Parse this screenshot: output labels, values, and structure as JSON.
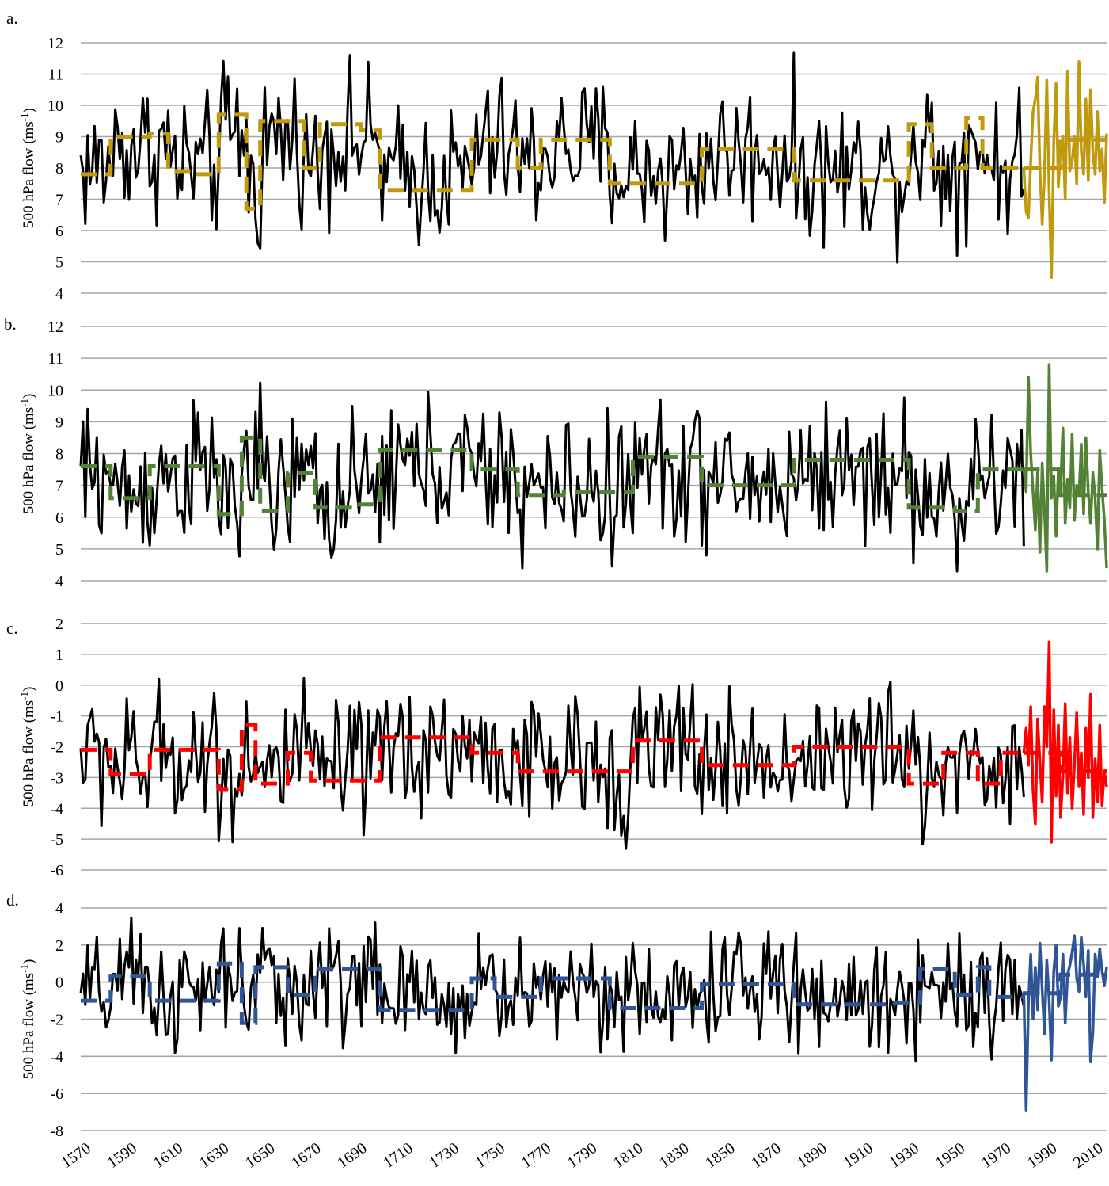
{
  "chart_data": [
    {
      "type": "line",
      "panel_label": "a.",
      "ylabel": "500 hPa flow (ms-1)",
      "ylabel_parts": [
        "500 hPa flow (ms",
        "-1",
        ")"
      ],
      "ylim": [
        4,
        12
      ],
      "yticks": [
        4,
        5,
        6,
        7,
        8,
        9,
        10,
        11,
        12
      ],
      "grid": true,
      "color": "#c0990c",
      "series": [
        {
          "style": "solid-black-annual",
          "base": 8.3,
          "amplitude": 1.1,
          "x_range": [
            1570,
            1980
          ]
        },
        {
          "style": "dashed-regime-mean",
          "segments": [
            [
              1570,
              1583,
              7.8
            ],
            [
              1583,
              1600,
              9.0
            ],
            [
              1600,
              1608,
              9.1
            ],
            [
              1608,
              1620,
              7.9
            ],
            [
              1620,
              1630,
              7.8
            ],
            [
              1630,
              1642,
              9.7
            ],
            [
              1642,
              1648,
              6.7
            ],
            [
              1648,
              1658,
              9.5
            ],
            [
              1658,
              1667,
              9.5
            ],
            [
              1667,
              1674,
              8.0
            ],
            [
              1674,
              1684,
              9.4
            ],
            [
              1684,
              1692,
              9.4
            ],
            [
              1692,
              1700,
              9.2
            ],
            [
              1700,
              1722,
              7.3
            ],
            [
              1722,
              1740,
              7.3
            ],
            [
              1740,
              1760,
              8.9
            ],
            [
              1760,
              1770,
              8.0
            ],
            [
              1770,
              1800,
              8.9
            ],
            [
              1800,
              1830,
              7.5
            ],
            [
              1830,
              1840,
              7.5
            ],
            [
              1840,
              1870,
              8.6
            ],
            [
              1870,
              1880,
              8.6
            ],
            [
              1880,
              1900,
              7.6
            ],
            [
              1900,
              1930,
              7.6
            ],
            [
              1930,
              1940,
              9.4
            ],
            [
              1940,
              1955,
              8.0
            ],
            [
              1955,
              1962,
              9.6
            ],
            [
              1962,
              1980,
              8.0
            ]
          ]
        },
        {
          "style": "solid-colored-recent",
          "x": [
            1980,
            1981,
            1982,
            1983,
            1984,
            1985,
            1986,
            1987,
            1988,
            1989,
            1990,
            1991,
            1992,
            1993,
            1994,
            1995,
            1996,
            1997,
            1998,
            1999,
            2000,
            2001,
            2002,
            2003,
            2004,
            2005,
            2006,
            2007,
            2008,
            2009,
            2010,
            2011,
            2012,
            2013,
            2014,
            2015,
            2016
          ],
          "values": [
            8.0,
            6.6,
            6.4,
            8.2,
            9.8,
            10.2,
            10.9,
            8.0,
            6.2,
            7.8,
            10.8,
            7.2,
            4.5,
            8.8,
            10.7,
            7.4,
            8.6,
            9.0,
            7.0,
            11.1,
            7.9,
            8.2,
            9.0,
            7.5,
            11.4,
            8.5,
            7.8,
            10.2,
            7.6,
            10.5,
            8.5,
            7.8,
            9.8,
            7.9,
            8.6,
            6.9,
            9.1
          ]
        },
        {
          "style": "dashed-regime-recent",
          "segments": [
            [
              1980,
              1996,
              8.0
            ],
            [
              1996,
              2016,
              8.9
            ]
          ]
        }
      ]
    },
    {
      "type": "line",
      "panel_label": "b.",
      "ylabel": "500 hPa flow (ms-1)",
      "ylabel_parts": [
        "500 hPa flow (ms",
        "-1",
        ")"
      ],
      "ylim": [
        4,
        12
      ],
      "yticks": [
        4,
        5,
        6,
        7,
        8,
        9,
        10,
        11,
        12
      ],
      "grid": true,
      "color": "#538135",
      "series": [
        {
          "style": "solid-black-annual",
          "base": 7.0,
          "amplitude": 1.1,
          "x_range": [
            1570,
            1980
          ]
        },
        {
          "style": "dashed-regime-mean",
          "segments": [
            [
              1570,
              1583,
              7.6
            ],
            [
              1583,
              1600,
              6.6
            ],
            [
              1600,
              1620,
              7.6
            ],
            [
              1620,
              1630,
              7.6
            ],
            [
              1630,
              1640,
              6.1
            ],
            [
              1640,
              1648,
              8.5
            ],
            [
              1648,
              1660,
              6.2
            ],
            [
              1660,
              1672,
              7.4
            ],
            [
              1672,
              1690,
              6.3
            ],
            [
              1690,
              1700,
              6.4
            ],
            [
              1700,
              1720,
              8.1
            ],
            [
              1720,
              1740,
              8.1
            ],
            [
              1740,
              1760,
              7.5
            ],
            [
              1760,
              1780,
              6.7
            ],
            [
              1780,
              1810,
              6.8
            ],
            [
              1810,
              1840,
              7.9
            ],
            [
              1840,
              1860,
              7.0
            ],
            [
              1860,
              1880,
              7.0
            ],
            [
              1880,
              1900,
              7.8
            ],
            [
              1900,
              1930,
              7.8
            ],
            [
              1930,
              1950,
              6.3
            ],
            [
              1950,
              1960,
              6.2
            ],
            [
              1960,
              1980,
              7.5
            ]
          ]
        },
        {
          "style": "solid-colored-recent",
          "x": [
            1980,
            1981,
            1982,
            1983,
            1984,
            1985,
            1986,
            1987,
            1988,
            1989,
            1990,
            1991,
            1992,
            1993,
            1994,
            1995,
            1996,
            1997,
            1998,
            1999,
            2000,
            2001,
            2002,
            2003,
            2004,
            2005,
            2006,
            2007,
            2008,
            2009,
            2010,
            2011,
            2012,
            2013,
            2014,
            2015,
            2016
          ],
          "values": [
            7.5,
            6.8,
            10.4,
            8.0,
            6.8,
            5.6,
            7.4,
            4.9,
            7.7,
            6.2,
            4.3,
            10.8,
            6.6,
            7.3,
            5.4,
            7.5,
            7.0,
            8.8,
            5.8,
            7.2,
            6.3,
            8.6,
            5.9,
            7.0,
            6.7,
            8.3,
            6.1,
            8.5,
            6.8,
            5.8,
            7.4,
            6.6,
            5.0,
            8.1,
            6.9,
            5.9,
            4.4
          ]
        },
        {
          "style": "dashed-regime-recent",
          "segments": [
            [
              1980,
              1996,
              7.5
            ],
            [
              1996,
              2016,
              6.7
            ]
          ]
        }
      ]
    },
    {
      "type": "line",
      "panel_label": "c.",
      "ylabel": "500 hPa flow (ms-1)",
      "ylabel_parts": [
        "500 hPa flow (ms",
        "-1",
        ")"
      ],
      "ylim": [
        -6,
        2
      ],
      "yticks": [
        -6,
        -5,
        -4,
        -3,
        -2,
        -1,
        0,
        1,
        2
      ],
      "grid": true,
      "color": "#ff0000",
      "series": [
        {
          "style": "solid-black-annual",
          "base": -2.4,
          "amplitude": 1.1,
          "x_range": [
            1570,
            1980
          ]
        },
        {
          "style": "dashed-regime-mean",
          "segments": [
            [
              1570,
              1583,
              -2.1
            ],
            [
              1583,
              1600,
              -2.9
            ],
            [
              1600,
              1620,
              -2.1
            ],
            [
              1620,
              1630,
              -2.1
            ],
            [
              1630,
              1640,
              -3.4
            ],
            [
              1640,
              1646,
              -1.3
            ],
            [
              1646,
              1660,
              -3.2
            ],
            [
              1660,
              1670,
              -2.2
            ],
            [
              1670,
              1690,
              -3.1
            ],
            [
              1690,
              1700,
              -3.1
            ],
            [
              1700,
              1720,
              -1.7
            ],
            [
              1720,
              1740,
              -1.7
            ],
            [
              1740,
              1760,
              -2.2
            ],
            [
              1760,
              1780,
              -2.8
            ],
            [
              1780,
              1810,
              -2.8
            ],
            [
              1810,
              1840,
              -1.8
            ],
            [
              1840,
              1870,
              -2.6
            ],
            [
              1870,
              1880,
              -2.6
            ],
            [
              1880,
              1900,
              -2.0
            ],
            [
              1900,
              1930,
              -2.0
            ],
            [
              1930,
              1945,
              -3.2
            ],
            [
              1945,
              1960,
              -2.2
            ],
            [
              1960,
              1970,
              -3.2
            ],
            [
              1970,
              1980,
              -2.2
            ]
          ]
        },
        {
          "style": "solid-colored-recent",
          "x": [
            1980,
            1981,
            1982,
            1983,
            1984,
            1985,
            1986,
            1987,
            1988,
            1989,
            1990,
            1991,
            1992,
            1993,
            1994,
            1995,
            1996,
            1997,
            1998,
            1999,
            2000,
            2001,
            2002,
            2003,
            2004,
            2005,
            2006,
            2007,
            2008,
            2009,
            2010,
            2011,
            2012,
            2013,
            2014,
            2015,
            2016
          ],
          "values": [
            -2.2,
            -1.4,
            -2.6,
            -0.7,
            -3.4,
            -4.5,
            -1.1,
            -2.5,
            -3.8,
            -0.7,
            -2.0,
            1.4,
            -5.1,
            -0.8,
            -3.6,
            -1.3,
            -4.3,
            -2.9,
            -0.6,
            -3.5,
            -1.7,
            -4.0,
            -2.6,
            -0.9,
            -3.3,
            -2.2,
            -4.2,
            -1.4,
            -3.0,
            -0.3,
            -4.3,
            -2.4,
            -3.8,
            -1.3,
            -3.9,
            -2.8,
            -3.3
          ]
        },
        {
          "style": "dashed-regime-recent",
          "segments": [
            [
              1980,
              1996,
              -2.2
            ],
            [
              1996,
              2016,
              -2.8
            ]
          ]
        }
      ]
    },
    {
      "type": "line",
      "panel_label": "d.",
      "ylabel": "500 hPa flow (ms-1)",
      "ylabel_parts": [
        "500 hPa flow (ms",
        "-1",
        ")"
      ],
      "ylim": [
        -8,
        4
      ],
      "yticks": [
        -8,
        -6,
        -4,
        -2,
        0,
        2,
        4
      ],
      "grid": true,
      "color": "#2f5597",
      "series": [
        {
          "style": "solid-black-annual",
          "base": -0.4,
          "amplitude": 1.5,
          "x_range": [
            1570,
            1980
          ]
        },
        {
          "style": "dashed-regime-mean",
          "segments": [
            [
              1570,
              1583,
              -1.0
            ],
            [
              1583,
              1600,
              0.3
            ],
            [
              1600,
              1610,
              -1.0
            ],
            [
              1610,
              1630,
              -1.0
            ],
            [
              1630,
              1640,
              1.0
            ],
            [
              1640,
              1646,
              -2.2
            ],
            [
              1646,
              1660,
              0.8
            ],
            [
              1660,
              1672,
              -0.7
            ],
            [
              1672,
              1680,
              0.7
            ],
            [
              1680,
              1700,
              0.7
            ],
            [
              1700,
              1720,
              -1.5
            ],
            [
              1720,
              1740,
              -1.5
            ],
            [
              1740,
              1750,
              0.2
            ],
            [
              1750,
              1770,
              -0.8
            ],
            [
              1770,
              1800,
              0.2
            ],
            [
              1800,
              1830,
              -1.4
            ],
            [
              1830,
              1840,
              -1.4
            ],
            [
              1840,
              1880,
              -0.1
            ],
            [
              1880,
              1900,
              -1.2
            ],
            [
              1900,
              1920,
              -1.2
            ],
            [
              1920,
              1935,
              -1.1
            ],
            [
              1935,
              1950,
              0.7
            ],
            [
              1950,
              1960,
              -0.7
            ],
            [
              1960,
              1965,
              0.8
            ],
            [
              1965,
              1980,
              -0.8
            ]
          ]
        },
        {
          "style": "solid-colored-recent",
          "x": [
            1980,
            1981,
            1982,
            1983,
            1984,
            1985,
            1986,
            1987,
            1988,
            1989,
            1990,
            1991,
            1992,
            1993,
            1994,
            1995,
            1996,
            1997,
            1998,
            1999,
            2000,
            2001,
            2002,
            2003,
            2004,
            2005,
            2006,
            2007,
            2008,
            2009,
            2010,
            2011,
            2012,
            2013,
            2014,
            2015,
            2016
          ],
          "values": [
            -0.5,
            -6.9,
            -1.2,
            1.5,
            -2.0,
            0.8,
            -1.5,
            2.1,
            -0.4,
            -2.8,
            1.2,
            -1.0,
            -4.2,
            0.6,
            2.0,
            -1.3,
            -0.8,
            1.5,
            -2.2,
            0.4,
            0.9,
            1.6,
            2.5,
            0.2,
            -0.5,
            2.4,
            1.0,
            -0.8,
            1.7,
            -4.3,
            -2.7,
            1.5,
            0.3,
            1.8,
            0.6,
            -0.2,
            0.8
          ]
        },
        {
          "style": "dashed-regime-recent",
          "segments": [
            [
              1980,
              1996,
              -0.6
            ],
            [
              1996,
              2016,
              0.4
            ]
          ]
        }
      ]
    }
  ],
  "x_axis": {
    "min": 1570,
    "max": 2016,
    "tick_labels": [
      "1570",
      "1590",
      "1610",
      "1630",
      "1650",
      "1670",
      "1690",
      "1710",
      "1730",
      "1750",
      "1770",
      "1790",
      "1810",
      "1830",
      "1850",
      "1870",
      "1890",
      "1910",
      "1930",
      "1950",
      "1970",
      "1990",
      "2010"
    ]
  },
  "colors": {
    "annual_line": "#000000",
    "grid": "#a6a6a6"
  }
}
